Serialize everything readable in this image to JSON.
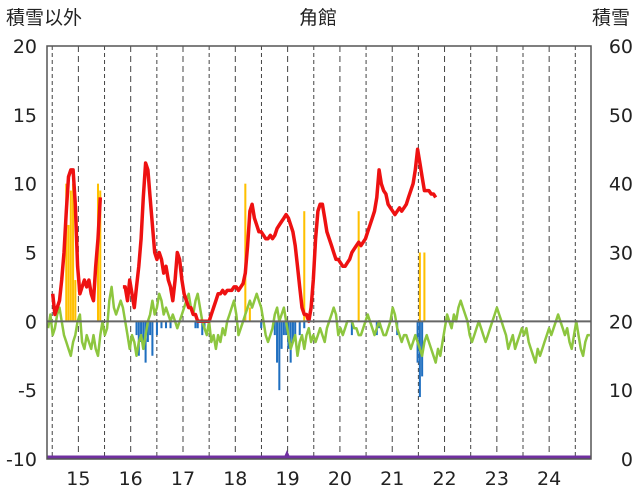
{
  "chart_data": {
    "type": "bar+line",
    "title": "角館",
    "left_axis_label": "積雪以外",
    "right_axis_label": "積雪",
    "left_ylim": [
      -10,
      20
    ],
    "right_ylim": [
      0,
      60
    ],
    "left_ticks": [
      "20",
      "15",
      "10",
      "5",
      "0",
      "-5",
      "-10"
    ],
    "right_ticks": [
      "60",
      "50",
      "40",
      "30",
      "20",
      "10",
      "0"
    ],
    "x_labels": [
      "15",
      "16",
      "17",
      "18",
      "19",
      "20",
      "21",
      "22",
      "23",
      "24"
    ],
    "grid": "vertical dashed at hour boundaries",
    "colors": {
      "temperature": "#8dc63f",
      "snow_depth": "#ee1111",
      "precipitation": "#ffc000",
      "snow_change": "#1f6fc0",
      "sunshine": "#7030a0",
      "zero_line": "#666666",
      "grid": "#444444"
    },
    "series": [
      {
        "name": "temperature",
        "axis": "left",
        "values": [
          -0.5,
          0.5,
          -1.0,
          -0.5,
          0.5,
          1.0,
          0.0,
          -1.0,
          -1.5,
          -2.0,
          -2.5,
          -1.5,
          -1.0,
          0.0,
          0.5,
          -1.5,
          -2.0,
          -1.0,
          -1.5,
          -2.0,
          -1.0,
          -2.0,
          -2.5,
          -1.0,
          0.0,
          -1.0,
          -0.5,
          1.5,
          2.5,
          1.0,
          0.5,
          1.0,
          1.5,
          1.0,
          0.0,
          -1.0,
          -2.0,
          -1.0,
          -1.5,
          -2.5,
          -1.5,
          -1.0,
          -2.0,
          -1.0,
          0.0,
          0.5,
          1.5,
          0.5,
          1.0,
          2.0,
          1.5,
          0.5,
          1.0,
          0.5,
          0.0,
          0.5,
          0.0,
          -0.5,
          0.0,
          0.5,
          1.0,
          1.5,
          2.0,
          1.0,
          0.5,
          1.5,
          2.0,
          1.0,
          0.0,
          -0.5,
          -1.0,
          0.0,
          -1.5,
          -1.0,
          -2.0,
          -1.0,
          -1.5,
          -0.5,
          -1.0,
          0.0,
          0.5,
          1.0,
          1.5,
          0.5,
          -1.0,
          -0.5,
          0.0,
          0.5,
          1.0,
          1.5,
          1.0,
          1.5,
          2.0,
          1.5,
          1.0,
          0.0,
          -1.0,
          -1.5,
          -1.0,
          -0.5,
          0.5,
          1.0,
          0.0,
          0.5,
          1.0,
          0.0,
          -1.0,
          -2.0,
          -1.5,
          -1.0,
          -2.5,
          -1.5,
          -1.0,
          -2.0,
          -1.0,
          -0.5,
          -1.5,
          -1.0,
          -1.5,
          -1.0,
          -0.5,
          -1.0,
          -1.5,
          -0.5,
          0.0,
          0.5,
          1.0,
          0.5,
          -1.0,
          -0.5,
          -1.0,
          -0.5,
          0.0,
          0.0,
          0.0,
          -0.5,
          -0.5,
          -1.0,
          -1.0,
          -0.5,
          0.0,
          0.5,
          0.0,
          -0.5,
          -1.0,
          -0.5,
          0.0,
          -0.5,
          -1.0,
          -1.0,
          -0.5,
          0.0,
          1.0,
          0.5,
          -0.5,
          -1.0,
          -1.5,
          -1.0,
          -1.0,
          -1.5,
          -2.0,
          -1.5,
          -1.0,
          -1.5,
          -2.0,
          -2.5,
          -1.5,
          -1.0,
          -1.5,
          -2.0,
          -2.5,
          -3.0,
          -2.0,
          -2.5,
          -1.5,
          -0.5,
          0.5,
          0.0,
          -0.5,
          0.5,
          0.0,
          1.0,
          1.5,
          1.0,
          0.5,
          0.0,
          -1.0,
          -1.5,
          -1.0,
          -0.5,
          0.0,
          -0.5,
          -1.0,
          -1.5,
          -1.0,
          -0.5,
          0.0,
          0.5,
          1.0,
          0.5,
          0.0,
          -0.5,
          -1.0,
          -2.0,
          -1.5,
          -1.0,
          -2.0,
          -1.5,
          -1.0,
          -0.5,
          -1.0,
          -0.5,
          -1.5,
          -2.0,
          -2.5,
          -3.0,
          -2.0,
          -2.5,
          -2.0,
          -1.5,
          -1.0,
          -0.5,
          -1.0,
          -0.5,
          0.0,
          0.5,
          0.0,
          -0.5,
          -1.0,
          -0.5,
          -1.5,
          -2.0,
          -1.0,
          0.0,
          -1.0,
          -2.0,
          -2.5,
          -1.5,
          -1.0,
          -1.0
        ]
      },
      {
        "name": "snow_depth",
        "axis": "right",
        "values": [
          null,
          null,
          24.0,
          21.0,
          22.0,
          23.0,
          26.0,
          30.0,
          36.0,
          41.0,
          42.0,
          42.0,
          37.0,
          28.0,
          24.0,
          25.0,
          26.0,
          25.0,
          26.0,
          24.0,
          23.0,
          28.0,
          32.0,
          38.0,
          null,
          null,
          null,
          null,
          null,
          null,
          null,
          null,
          null,
          25.0,
          25.0,
          23.0,
          26.0,
          24.0,
          22.0,
          25.0,
          28.0,
          32.0,
          38.0,
          43.0,
          42.0,
          38.0,
          34.0,
          30.0,
          29.0,
          30.0,
          29.0,
          27.0,
          28.0,
          26.0,
          25.0,
          23.0,
          26.0,
          30.0,
          29.0,
          26.0,
          24.0,
          23.0,
          22.0,
          22.0,
          21.0,
          21.0,
          20.0,
          20.0,
          20.0,
          20.0,
          20.0,
          20.0,
          21.0,
          22.0,
          23.0,
          24.0,
          24.0,
          24.5,
          24.0,
          24.5,
          24.5,
          24.5,
          25.0,
          25.0,
          24.5,
          25.0,
          25.5,
          27.0,
          31.0,
          36.0,
          37.0,
          35.0,
          34.0,
          33.0,
          33.0,
          32.5,
          32.0,
          32.0,
          32.5,
          32.0,
          32.5,
          33.5,
          34.0,
          34.5,
          35.0,
          35.5,
          35.0,
          34.0,
          33.0,
          31.0,
          28.0,
          25.0,
          22.0,
          21.0,
          21.0,
          20.0,
          22.0,
          26.0,
          32.0,
          36.0,
          37.0,
          37.0,
          35.0,
          33.0,
          32.0,
          31.0,
          30.0,
          29.0,
          29.0,
          28.5,
          28.0,
          28.0,
          28.5,
          29.0,
          30.0,
          30.5,
          31.0,
          31.5,
          31.0,
          31.5,
          32.0,
          33.0,
          34.0,
          35.0,
          36.0,
          38.0,
          42.0,
          40.0,
          39.0,
          38.5,
          37.0,
          36.5,
          36.0,
          35.5,
          36.0,
          36.5,
          36.0,
          36.5,
          37.0,
          38.0,
          39.0,
          40.0,
          42.0,
          45.0,
          43.0,
          41.0,
          39.0,
          39.0,
          39.0,
          38.5,
          38.5,
          38.0
        ]
      },
      {
        "name": "precipitation",
        "axis": "left",
        "values": [
          0,
          0,
          0,
          0,
          0,
          0,
          0,
          0,
          10.0,
          7.0,
          9.5,
          10.0,
          3.0,
          0,
          0,
          0,
          0,
          0,
          0,
          0,
          0,
          0,
          10.0,
          9.5,
          0,
          0,
          0,
          0,
          0,
          0,
          0,
          0,
          0,
          0,
          0,
          0,
          0,
          0,
          0,
          0,
          0,
          0,
          0,
          0,
          0,
          0,
          0,
          0,
          0,
          0,
          0,
          0,
          0,
          0,
          0,
          0,
          0,
          0,
          0,
          0,
          0,
          0,
          0,
          0,
          0,
          0,
          0,
          0,
          0,
          0,
          0,
          0,
          0,
          0,
          0,
          0,
          0,
          0,
          0,
          0,
          0,
          0,
          0,
          0,
          0,
          0,
          0,
          10.0,
          0,
          1.0,
          0,
          0,
          0,
          0,
          0,
          0,
          0,
          0,
          0,
          0,
          0,
          0,
          0,
          0,
          0,
          0,
          0,
          0,
          0,
          0,
          0,
          0,
          0,
          8.0,
          0,
          0,
          0,
          0,
          0,
          0,
          0,
          0,
          0,
          0,
          0,
          0,
          0,
          0,
          0,
          0,
          0,
          0,
          0,
          0,
          0,
          0,
          0,
          8.0,
          0,
          0,
          0,
          0,
          0,
          0,
          0,
          0,
          0,
          0,
          0,
          0,
          0,
          0,
          0,
          0,
          0,
          0,
          0,
          0,
          0,
          0,
          0,
          0,
          0,
          0,
          5.0,
          0,
          5.0,
          0,
          0,
          0,
          0,
          0,
          0
        ]
      },
      {
        "name": "snow_change",
        "axis": "left",
        "values": [
          0,
          0,
          0,
          0,
          0,
          0,
          0,
          0,
          0,
          0,
          0,
          0,
          0,
          0,
          0,
          0,
          0,
          0,
          0,
          0,
          0,
          0,
          0,
          0,
          0,
          0,
          0,
          0,
          0,
          0,
          0,
          0,
          0,
          0,
          0,
          0,
          0,
          0,
          0,
          -1.0,
          -2.5,
          -1.5,
          -2.0,
          -3.0,
          -1.5,
          -1.0,
          -2.5,
          0,
          -1.0,
          0,
          -0.5,
          0,
          -0.5,
          0,
          -0.5,
          0,
          0,
          0,
          0,
          0,
          0,
          0,
          0,
          0,
          0,
          -0.5,
          -0.5,
          0,
          -1.0,
          -0.5,
          0,
          0,
          0,
          0,
          0,
          0,
          0,
          0,
          0,
          0,
          0,
          0,
          0,
          0,
          0,
          0,
          0,
          0,
          0,
          0,
          0,
          0,
          0,
          0,
          -0.5,
          0,
          0,
          0,
          0,
          0,
          -1.0,
          -3.0,
          -5.0,
          -2.0,
          -1.0,
          -1.0,
          -2.0,
          -3.0,
          -1.5,
          -1.0,
          0,
          -1.0,
          0,
          -0.5,
          0,
          0,
          0,
          0,
          0,
          0,
          0,
          0,
          0,
          0,
          0,
          0,
          0,
          0,
          0,
          0,
          0,
          0,
          0,
          0,
          -1.0,
          0,
          0,
          0,
          0,
          0,
          0,
          0,
          0,
          0,
          0,
          -1.0,
          -0.5,
          0,
          0,
          0,
          0,
          0,
          0,
          0,
          -1.0,
          0,
          0,
          0,
          0,
          0,
          0,
          0,
          0,
          -3.0,
          -5.5,
          -4.0
        ]
      },
      {
        "name": "sunshine",
        "axis": "left",
        "values": [
          0,
          0,
          0,
          0,
          0,
          0,
          0,
          0,
          0,
          0,
          0,
          0,
          0,
          0,
          0,
          0,
          0,
          0,
          0,
          0,
          0,
          0,
          0,
          0,
          0,
          0,
          0,
          0,
          0,
          0,
          0,
          0,
          0,
          0,
          0,
          0,
          0,
          0,
          0,
          0,
          0,
          0,
          0,
          0,
          0,
          0,
          0,
          0,
          0,
          0,
          0,
          0,
          0,
          0,
          0,
          0,
          0,
          0,
          0,
          0,
          0,
          0,
          0,
          0,
          0,
          0,
          0,
          0,
          0,
          0,
          0,
          0,
          0,
          0,
          0,
          0,
          0,
          0,
          0,
          0,
          0,
          0,
          0,
          0,
          0,
          0,
          0,
          0,
          0,
          0,
          0,
          0,
          0,
          0,
          0,
          0,
          0,
          0,
          0,
          0,
          0,
          0,
          0,
          0,
          0,
          0,
          0,
          0,
          0,
          0,
          0,
          0,
          0,
          0,
          0,
          0,
          0,
          0,
          0,
          0,
          0,
          0,
          0,
          0,
          0,
          0,
          0,
          0,
          0,
          0,
          0,
          0,
          0,
          0,
          0,
          0,
          0,
          0,
          0,
          0,
          0,
          0,
          0,
          0,
          0,
          0,
          0,
          0,
          0,
          0,
          0,
          0,
          0,
          0,
          0,
          0,
          0,
          0,
          0,
          0,
          0,
          0,
          0,
          0,
          0,
          0,
          0,
          0,
          0,
          0,
          0,
          0,
          0,
          0,
          0,
          0,
          0
        ]
      }
    ]
  }
}
